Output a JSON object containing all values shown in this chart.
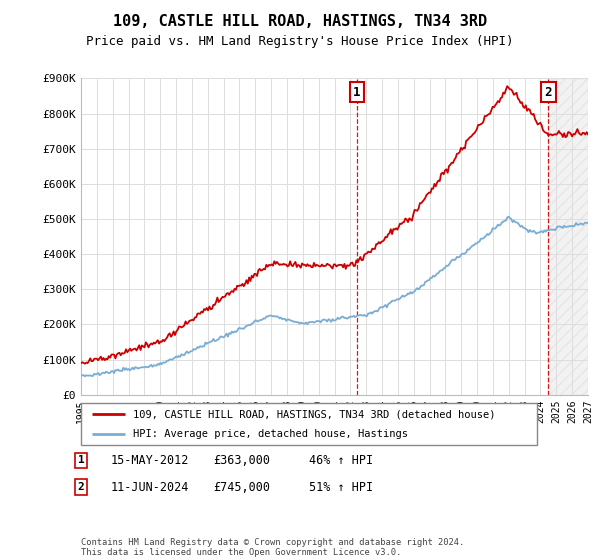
{
  "title": "109, CASTLE HILL ROAD, HASTINGS, TN34 3RD",
  "subtitle": "Price paid vs. HM Land Registry's House Price Index (HPI)",
  "red_label": "109, CASTLE HILL ROAD, HASTINGS, TN34 3RD (detached house)",
  "blue_label": "HPI: Average price, detached house, Hastings",
  "transaction1_date": "15-MAY-2012",
  "transaction1_price": 363000,
  "transaction1_pct": "46% ↑ HPI",
  "transaction2_date": "11-JUN-2024",
  "transaction2_price": 745000,
  "transaction2_pct": "51% ↑ HPI",
  "footer": "Contains HM Land Registry data © Crown copyright and database right 2024.\nThis data is licensed under the Open Government Licence v3.0.",
  "red_color": "#cc0000",
  "blue_color": "#7aadd4",
  "ylim": [
    0,
    900000
  ],
  "yticks": [
    0,
    100000,
    200000,
    300000,
    400000,
    500000,
    600000,
    700000,
    800000,
    900000
  ],
  "ytick_labels": [
    "£0",
    "£100K",
    "£200K",
    "£300K",
    "£400K",
    "£500K",
    "£600K",
    "£700K",
    "£800K",
    "£900K"
  ],
  "x_start_year": 1995,
  "x_end_year": 2027
}
